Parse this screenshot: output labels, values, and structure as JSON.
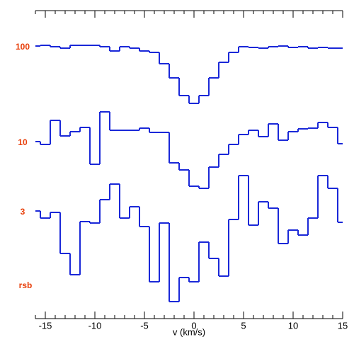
{
  "chart_data": {
    "type": "step",
    "xlabel": "v (km/s)",
    "annotation": "rsb",
    "xlim": [
      -16,
      15
    ],
    "ylim": [
      0,
      435
    ],
    "xticks": [
      -15,
      -10,
      -5,
      0,
      5,
      10,
      15
    ],
    "xminorticks": [
      -16,
      -14,
      -13,
      -12,
      -11,
      -9,
      -8,
      -7,
      -6,
      -4,
      -3,
      -2,
      -1,
      1,
      2,
      3,
      4,
      6,
      7,
      8,
      9,
      11,
      12,
      13,
      14
    ],
    "label_color": "#e8400c",
    "x": [
      -16,
      -15,
      -14,
      -13,
      -12,
      -11,
      -10,
      -9,
      -8,
      -7,
      -6,
      -5,
      -4,
      -3,
      -2,
      -1,
      0,
      1,
      2,
      3,
      4,
      5,
      6,
      7,
      8,
      9,
      10,
      11,
      12,
      13,
      14,
      15
    ],
    "series": [
      {
        "name": "100",
        "color": "#1a28d8",
        "values": [
          385,
          386,
          384,
          382,
          386,
          386,
          386,
          384,
          378,
          384,
          382,
          378,
          376,
          360,
          340,
          315,
          304,
          315,
          340,
          362,
          376,
          384,
          383,
          382,
          384,
          385,
          383,
          384,
          382,
          383,
          382,
          382
        ]
      },
      {
        "name": "10",
        "color": "#1a28d8",
        "values": [
          250,
          246,
          280,
          258,
          264,
          270,
          218,
          292,
          266,
          266,
          266,
          269,
          263,
          263,
          220,
          210,
          187,
          184,
          214,
          232,
          246,
          260,
          266,
          257,
          275,
          252,
          264,
          268,
          269,
          277,
          270,
          247
        ]
      },
      {
        "name": "3",
        "color": "#1a28d8",
        "values": [
          152,
          142,
          150,
          92,
          62,
          137,
          135,
          168,
          190,
          142,
          158,
          130,
          52,
          135,
          24,
          58,
          52,
          108,
          85,
          60,
          140,
          202,
          132,
          165,
          156,
          106,
          125,
          118,
          142,
          202,
          184,
          136
        ]
      }
    ]
  }
}
